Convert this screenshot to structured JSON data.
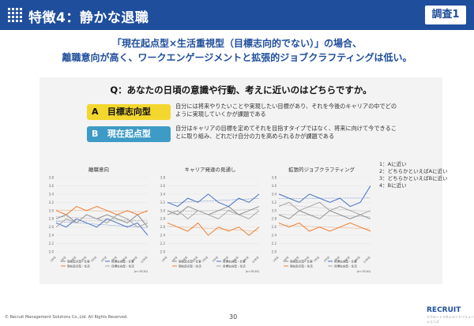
{
  "header": {
    "title": "特徴4：静かな退職",
    "badge": "調査1"
  },
  "lead": {
    "line1": "「現在起点型×生活重視型（目標志向的でない）」の場合、",
    "line2": "離職意向が高く、ワークエンゲージメントと拡張的ジョブクラフティングは低い。"
  },
  "question": "Q：あなたの日頃の意識や行動、考えに近いのはどちらですか。",
  "options": [
    {
      "letter": "A",
      "label": "目標志向型",
      "desc": "自分には将来やりたいことや実現したい目標があり、それを今後のキャリアの中でどのように実現していくかが課題である"
    },
    {
      "letter": "B",
      "label": "現在起点型",
      "desc": "自分はキャリアの目標を定めてそれを目指すタイプではなく、将来に向けて今できることに取り組み、どれだけ自分の力を高められるかが課題である"
    }
  ],
  "scale_legend": [
    "1：Aに近い",
    "2：どちらかといえばAに近い",
    "3：どちらかといえばBに近い",
    "4：Bに近い"
  ],
  "series_names": [
    "現在起点型・仕事",
    "目標志向型・仕事",
    "現在起点型・生活",
    "目標志向型・生活"
  ],
  "colors": {
    "s1": "#8e8e8e",
    "s2": "#4472c4",
    "s3": "#ed7d31",
    "s4": "#a5a5a5",
    "trend": "#c04cc0"
  },
  "n_label": "(n=3110)",
  "chart_data": [
    {
      "type": "line",
      "title": "離職意向",
      "x": [
        "1年目",
        "2年目",
        "3年目",
        "4年目",
        "5年目",
        "6年目",
        "7年目",
        "8年目",
        "9年目",
        "10年目"
      ],
      "ylim": [
        2.0,
        3.8
      ],
      "yticks": [
        "2.0",
        "2.2",
        "2.4",
        "2.6",
        "2.8",
        "3.0",
        "3.2",
        "3.4",
        "3.6",
        "3.8"
      ],
      "series": [
        {
          "name": "現在起点型・仕事",
          "values": [
            2.8,
            2.9,
            2.7,
            2.9,
            2.8,
            2.9,
            2.8,
            2.7,
            2.9,
            2.6
          ]
        },
        {
          "name": "目標志向型・仕事",
          "values": [
            2.7,
            2.6,
            2.8,
            2.7,
            2.6,
            2.8,
            2.7,
            2.6,
            2.7,
            2.4
          ]
        },
        {
          "name": "現在起点型・生活",
          "values": [
            3.0,
            2.9,
            3.1,
            3.0,
            3.1,
            3.0,
            2.9,
            3.0,
            2.9,
            3.0
          ]
        },
        {
          "name": "目標志向型・生活",
          "values": [
            2.6,
            2.8,
            2.7,
            2.9,
            2.8,
            2.7,
            2.9,
            2.8,
            2.6,
            2.7
          ]
        }
      ]
    },
    {
      "type": "line",
      "title": "キャリア発達の見通し",
      "x": [
        "1年目",
        "2年目",
        "3年目",
        "4年目",
        "5年目",
        "6年目",
        "7年目",
        "8年目",
        "9年目",
        "10年目"
      ],
      "ylim": [
        2.0,
        3.8
      ],
      "yticks": [
        "2.0",
        "2.2",
        "2.4",
        "2.6",
        "2.8",
        "3.0",
        "3.2",
        "3.4",
        "3.6",
        "3.8"
      ],
      "series": [
        {
          "name": "現在起点型・仕事",
          "values": [
            3.0,
            2.9,
            3.1,
            3.0,
            2.9,
            3.0,
            3.1,
            2.9,
            3.0,
            3.1
          ]
        },
        {
          "name": "目標志向型・仕事",
          "values": [
            3.2,
            3.1,
            3.3,
            3.2,
            3.4,
            3.2,
            3.1,
            3.3,
            3.2,
            3.4
          ]
        },
        {
          "name": "現在起点型・生活",
          "values": [
            2.7,
            2.6,
            2.5,
            2.7,
            2.4,
            2.6,
            2.5,
            2.6,
            2.4,
            2.6
          ]
        },
        {
          "name": "目標志向型・生活",
          "values": [
            2.9,
            3.0,
            2.8,
            3.0,
            2.9,
            2.8,
            3.0,
            2.9,
            2.8,
            3.0
          ]
        }
      ]
    },
    {
      "type": "line",
      "title": "拡張的ジョブクラフティング",
      "x": [
        "1年目",
        "2年目",
        "3年目",
        "4年目",
        "5年目",
        "6年目",
        "7年目",
        "8年目",
        "9年目",
        "10年目"
      ],
      "ylim": [
        2.0,
        3.8
      ],
      "yticks": [
        "2.0",
        "2.2",
        "2.4",
        "2.6",
        "2.8",
        "3.0",
        "3.2",
        "3.4",
        "3.6",
        "3.8"
      ],
      "series": [
        {
          "name": "現在起点型・仕事",
          "values": [
            2.9,
            2.8,
            3.0,
            2.9,
            2.8,
            3.0,
            2.9,
            2.8,
            2.9,
            2.8
          ]
        },
        {
          "name": "目標志向型・仕事",
          "values": [
            3.4,
            3.3,
            3.2,
            3.4,
            3.3,
            3.2,
            3.3,
            3.1,
            3.2,
            3.6
          ]
        },
        {
          "name": "現在起点型・生活",
          "values": [
            2.7,
            2.6,
            2.7,
            2.5,
            2.6,
            2.5,
            2.6,
            2.7,
            2.6,
            2.5
          ]
        },
        {
          "name": "目標志向型・生活",
          "values": [
            3.1,
            3.2,
            3.0,
            3.1,
            3.2,
            3.0,
            3.1,
            3.0,
            2.9,
            3.0
          ]
        }
      ]
    }
  ],
  "footer": {
    "copyright": "© Recruit Management Solutions Co.,Ltd. All Rights Reserved.",
    "page": "30",
    "logo": "RECRUIT",
    "logo_sub": "リクルートマネジメントソリューションズ"
  }
}
